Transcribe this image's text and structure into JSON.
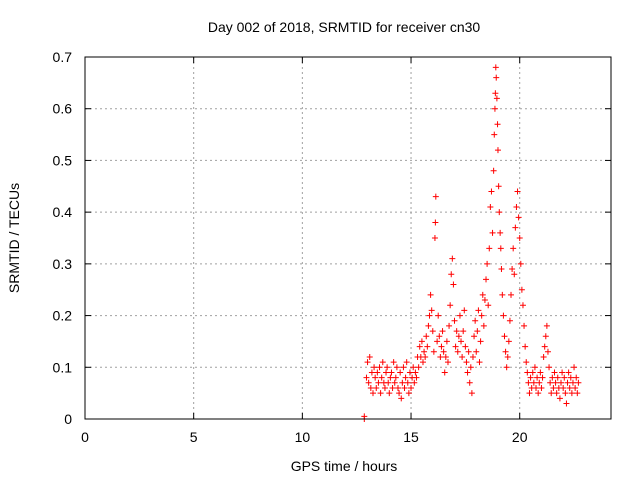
{
  "chart_data": {
    "type": "scatter",
    "title": "Day 002 of 2018, SRMTID for receiver cn30",
    "xlabel": "GPS time / hours",
    "ylabel": "SRMTID / TECUs",
    "xlim": [
      0,
      24.2
    ],
    "ylim": [
      0,
      0.7
    ],
    "xticks": [
      0,
      5,
      10,
      15,
      20
    ],
    "xtick_labels": [
      "0",
      "5",
      "10",
      "15",
      "20"
    ],
    "yticks": [
      0,
      0.1,
      0.2,
      0.3,
      0.4,
      0.5,
      0.6,
      0.7
    ],
    "ytick_labels": [
      "0",
      "0.1",
      "0.2",
      "0.3",
      "0.4",
      "0.5",
      "0.6",
      "0.7"
    ],
    "grid": true,
    "marker": "+",
    "color": "#ff0000",
    "series": [
      {
        "name": "SRMTID cn30",
        "points": [
          [
            12.85,
            0.0
          ],
          [
            12.85,
            0.005
          ],
          [
            12.95,
            0.08
          ],
          [
            13.0,
            0.11
          ],
          [
            13.05,
            0.07
          ],
          [
            13.1,
            0.12
          ],
          [
            13.15,
            0.06
          ],
          [
            13.2,
            0.09
          ],
          [
            13.25,
            0.05
          ],
          [
            13.3,
            0.1
          ],
          [
            13.35,
            0.08
          ],
          [
            13.4,
            0.06
          ],
          [
            13.45,
            0.09
          ],
          [
            13.5,
            0.07
          ],
          [
            13.55,
            0.1
          ],
          [
            13.6,
            0.05
          ],
          [
            13.65,
            0.08
          ],
          [
            13.7,
            0.11
          ],
          [
            13.75,
            0.07
          ],
          [
            13.8,
            0.06
          ],
          [
            13.85,
            0.09
          ],
          [
            13.9,
            0.1
          ],
          [
            13.95,
            0.07
          ],
          [
            14.0,
            0.05
          ],
          [
            14.05,
            0.08
          ],
          [
            14.1,
            0.09
          ],
          [
            14.15,
            0.06
          ],
          [
            14.2,
            0.11
          ],
          [
            14.25,
            0.07
          ],
          [
            14.3,
            0.08
          ],
          [
            14.35,
            0.1
          ],
          [
            14.4,
            0.06
          ],
          [
            14.45,
            0.05
          ],
          [
            14.5,
            0.09
          ],
          [
            14.55,
            0.04
          ],
          [
            14.6,
            0.07
          ],
          [
            14.65,
            0.1
          ],
          [
            14.7,
            0.06
          ],
          [
            14.75,
            0.08
          ],
          [
            14.8,
            0.11
          ],
          [
            14.85,
            0.07
          ],
          [
            14.9,
            0.05
          ],
          [
            14.95,
            0.09
          ],
          [
            15.0,
            0.06
          ],
          [
            15.05,
            0.08
          ],
          [
            15.1,
            0.1
          ],
          [
            15.15,
            0.07
          ],
          [
            15.2,
            0.09
          ],
          [
            15.25,
            0.08
          ],
          [
            15.3,
            0.12
          ],
          [
            15.35,
            0.1
          ],
          [
            15.4,
            0.14
          ],
          [
            15.45,
            0.12
          ],
          [
            15.5,
            0.15
          ],
          [
            15.55,
            0.11
          ],
          [
            15.6,
            0.13
          ],
          [
            15.65,
            0.12
          ],
          [
            15.7,
            0.16
          ],
          [
            15.75,
            0.14
          ],
          [
            15.8,
            0.18
          ],
          [
            15.85,
            0.2
          ],
          [
            15.9,
            0.24
          ],
          [
            15.95,
            0.21
          ],
          [
            16.0,
            0.17
          ],
          [
            16.05,
            0.13
          ],
          [
            16.1,
            0.35
          ],
          [
            16.12,
            0.38
          ],
          [
            16.14,
            0.43
          ],
          [
            16.2,
            0.15
          ],
          [
            16.25,
            0.2
          ],
          [
            16.3,
            0.16
          ],
          [
            16.35,
            0.12
          ],
          [
            16.4,
            0.14
          ],
          [
            16.45,
            0.17
          ],
          [
            16.5,
            0.13
          ],
          [
            16.55,
            0.09
          ],
          [
            16.6,
            0.12
          ],
          [
            16.65,
            0.15
          ],
          [
            16.7,
            0.11
          ],
          [
            16.75,
            0.18
          ],
          [
            16.8,
            0.22
          ],
          [
            16.85,
            0.28
          ],
          [
            16.9,
            0.31
          ],
          [
            16.95,
            0.26
          ],
          [
            17.0,
            0.19
          ],
          [
            17.05,
            0.14
          ],
          [
            17.1,
            0.17
          ],
          [
            17.15,
            0.13
          ],
          [
            17.2,
            0.16
          ],
          [
            17.25,
            0.2
          ],
          [
            17.3,
            0.15
          ],
          [
            17.35,
            0.12
          ],
          [
            17.4,
            0.17
          ],
          [
            17.45,
            0.21
          ],
          [
            17.5,
            0.14
          ],
          [
            17.55,
            0.11
          ],
          [
            17.6,
            0.09
          ],
          [
            17.65,
            0.13
          ],
          [
            17.7,
            0.07
          ],
          [
            17.75,
            0.1
          ],
          [
            17.8,
            0.05
          ],
          [
            17.85,
            0.12
          ],
          [
            17.9,
            0.16
          ],
          [
            17.95,
            0.19
          ],
          [
            18.0,
            0.13
          ],
          [
            18.05,
            0.17
          ],
          [
            18.1,
            0.21
          ],
          [
            18.15,
            0.11
          ],
          [
            18.2,
            0.15
          ],
          [
            18.25,
            0.2
          ],
          [
            18.3,
            0.24
          ],
          [
            18.35,
            0.18
          ],
          [
            18.4,
            0.23
          ],
          [
            18.45,
            0.27
          ],
          [
            18.5,
            0.3
          ],
          [
            18.55,
            0.22
          ],
          [
            18.6,
            0.33
          ],
          [
            18.65,
            0.41
          ],
          [
            18.7,
            0.44
          ],
          [
            18.75,
            0.36
          ],
          [
            18.8,
            0.48
          ],
          [
            18.83,
            0.55
          ],
          [
            18.86,
            0.6
          ],
          [
            18.88,
            0.63
          ],
          [
            18.9,
            0.68
          ],
          [
            18.92,
            0.66
          ],
          [
            18.95,
            0.62
          ],
          [
            18.98,
            0.57
          ],
          [
            19.0,
            0.52
          ],
          [
            19.03,
            0.45
          ],
          [
            19.06,
            0.4
          ],
          [
            19.1,
            0.36
          ],
          [
            19.13,
            0.33
          ],
          [
            19.16,
            0.29
          ],
          [
            19.2,
            0.24
          ],
          [
            19.25,
            0.2
          ],
          [
            19.3,
            0.16
          ],
          [
            19.35,
            0.13
          ],
          [
            19.4,
            0.1
          ],
          [
            19.45,
            0.12
          ],
          [
            19.5,
            0.15
          ],
          [
            19.55,
            0.19
          ],
          [
            19.6,
            0.24
          ],
          [
            19.65,
            0.29
          ],
          [
            19.7,
            0.33
          ],
          [
            19.75,
            0.28
          ],
          [
            19.8,
            0.37
          ],
          [
            19.85,
            0.41
          ],
          [
            19.9,
            0.44
          ],
          [
            19.95,
            0.39
          ],
          [
            20.0,
            0.35
          ],
          [
            20.05,
            0.3
          ],
          [
            20.1,
            0.25
          ],
          [
            20.15,
            0.22
          ],
          [
            20.2,
            0.18
          ],
          [
            20.25,
            0.14
          ],
          [
            20.3,
            0.11
          ],
          [
            20.35,
            0.09
          ],
          [
            20.4,
            0.07
          ],
          [
            20.45,
            0.05
          ],
          [
            20.5,
            0.08
          ],
          [
            20.55,
            0.06
          ],
          [
            20.6,
            0.09
          ],
          [
            20.65,
            0.07
          ],
          [
            20.7,
            0.1
          ],
          [
            20.75,
            0.06
          ],
          [
            20.8,
            0.08
          ],
          [
            20.85,
            0.05
          ],
          [
            20.9,
            0.07
          ],
          [
            20.95,
            0.09
          ],
          [
            21.0,
            0.06
          ],
          [
            21.05,
            0.08
          ],
          [
            21.1,
            0.12
          ],
          [
            21.15,
            0.14
          ],
          [
            21.2,
            0.16
          ],
          [
            21.25,
            0.18
          ],
          [
            21.3,
            0.13
          ],
          [
            21.35,
            0.1
          ],
          [
            21.4,
            0.07
          ],
          [
            21.45,
            0.05
          ],
          [
            21.5,
            0.08
          ],
          [
            21.55,
            0.06
          ],
          [
            21.6,
            0.09
          ],
          [
            21.65,
            0.07
          ],
          [
            21.7,
            0.05
          ],
          [
            21.75,
            0.08
          ],
          [
            21.8,
            0.06
          ],
          [
            21.85,
            0.04
          ],
          [
            21.9,
            0.07
          ],
          [
            21.95,
            0.09
          ],
          [
            22.0,
            0.06
          ],
          [
            22.05,
            0.08
          ],
          [
            22.1,
            0.05
          ],
          [
            22.15,
            0.03
          ],
          [
            22.2,
            0.07
          ],
          [
            22.25,
            0.09
          ],
          [
            22.3,
            0.06
          ],
          [
            22.35,
            0.08
          ],
          [
            22.4,
            0.05
          ],
          [
            22.45,
            0.07
          ],
          [
            22.5,
            0.1
          ],
          [
            22.55,
            0.06
          ],
          [
            22.6,
            0.08
          ],
          [
            22.65,
            0.05
          ],
          [
            22.7,
            0.07
          ]
        ]
      }
    ]
  }
}
